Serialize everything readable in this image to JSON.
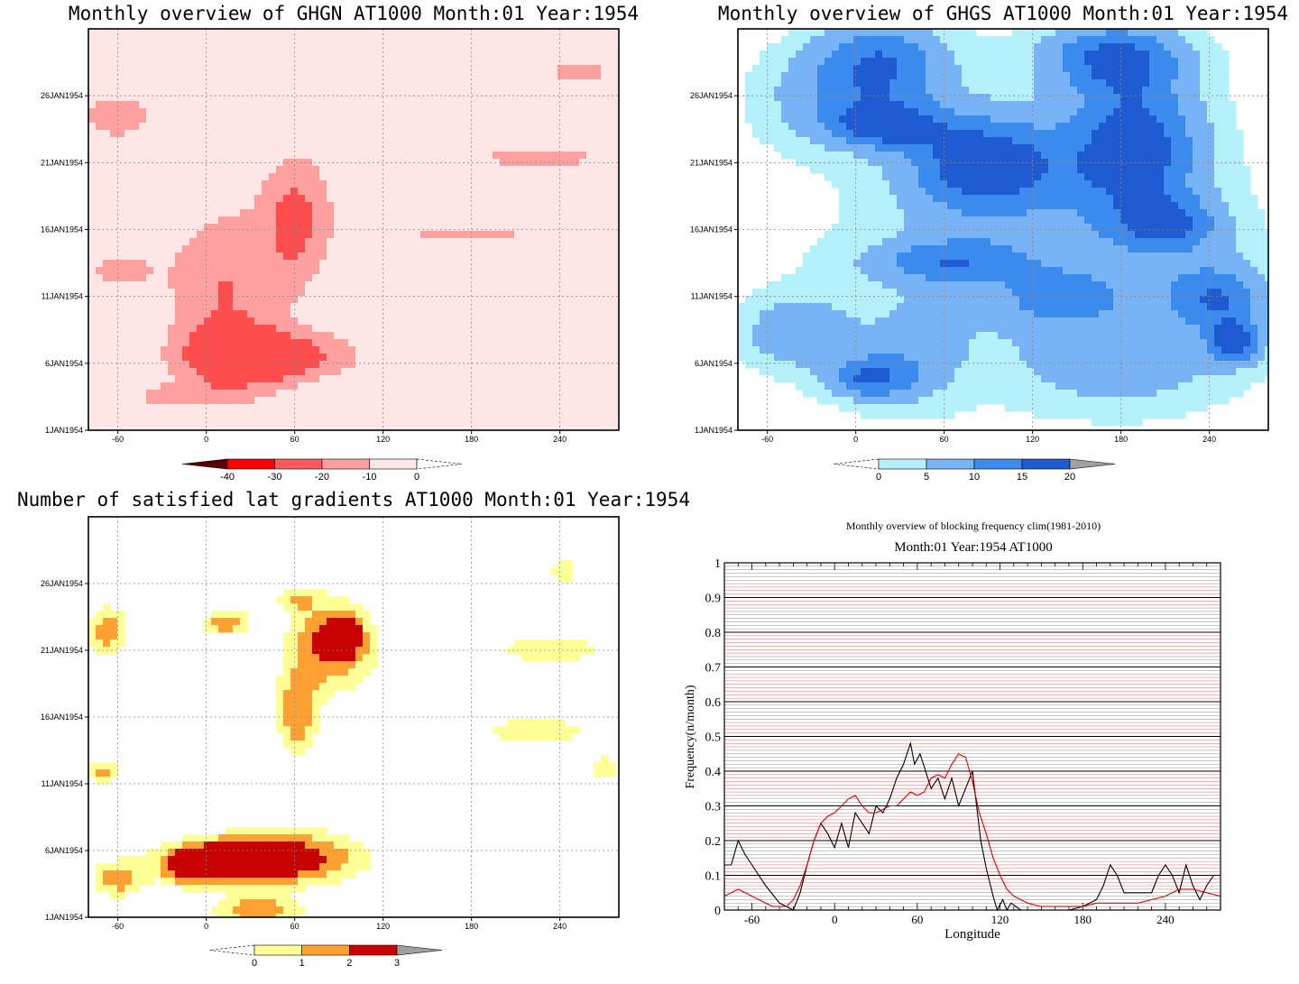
{
  "panels": [
    {
      "title": "Monthly overview of GHGN AT1000 Month:01 Year:1954",
      "colorbar": {
        "labels": [
          "-40",
          "-30",
          "-20",
          "-10",
          "0"
        ],
        "colors": [
          "#5a0000",
          "#ff0000",
          "#ff5a5a",
          "#ffa0a0",
          "#ffe8e8"
        ],
        "overflow": "left"
      },
      "palette": [
        "#ffffff",
        "#ffe6e6",
        "#ffa0a0",
        "#ff4d4d"
      ]
    },
    {
      "title": "Monthly overview of GHGS AT1000 Month:01 Year:1954",
      "colorbar": {
        "labels": [
          "0",
          "5",
          "10",
          "15",
          "20"
        ],
        "colors": [
          "#b4f0fa",
          "#78b4f5",
          "#3c8cf0",
          "#1e5ad2",
          "#a0a0a0"
        ],
        "overflow": "right"
      },
      "palette": [
        "#ffffff",
        "#b4f0fa",
        "#78b4f5",
        "#3c8cf0",
        "#1e5ad2"
      ]
    },
    {
      "title": "Number of satisfied lat gradients AT1000 Month:01 Year:1954",
      "colorbar": {
        "labels": [
          "0",
          "1",
          "2",
          "3"
        ],
        "colors": [
          "#ffff96",
          "#ffa032",
          "#c80000",
          "#a0a0a0"
        ],
        "overflow": "right"
      },
      "palette": [
        "#ffffff",
        "#ffff96",
        "#ffa032",
        "#c80000"
      ]
    }
  ],
  "map_axes": {
    "x_ticks": [
      "-60",
      "0",
      "60",
      "120",
      "180",
      "240"
    ],
    "y_ticks": [
      "1JAN1954",
      "6JAN1954",
      "11JAN1954",
      "16JAN1954",
      "21JAN1954",
      "26JAN1954"
    ]
  },
  "line_chart": {
    "title": "Monthly overview of blocking frequency clim(1981-2010)",
    "subtitle": "Month:01 Year:1954  AT1000",
    "xlabel": "Longitude",
    "ylabel": "Frequency(n/month)",
    "y_ticks": [
      "0",
      "0.1",
      "0.2",
      "0.3",
      "0.4",
      "0.5",
      "0.6",
      "0.7",
      "0.8",
      "0.9",
      "1"
    ],
    "x_ticks": [
      "-60",
      "0",
      "60",
      "120",
      "180",
      "240"
    ],
    "grid_color": "#cc0000"
  },
  "chart_data": [
    {
      "type": "heatmap",
      "title": "Monthly overview of GHGN AT1000 Month:01 Year:1954",
      "xlim": [
        -80,
        280
      ],
      "ylim": [
        "1JAN1954",
        "31JAN1954"
      ],
      "levels": [
        -40,
        -30,
        -20,
        -10,
        0
      ]
    },
    {
      "type": "heatmap",
      "title": "Monthly overview of GHGS AT1000 Month:01 Year:1954",
      "xlim": [
        -80,
        280
      ],
      "ylim": [
        "1JAN1954",
        "31JAN1954"
      ],
      "levels": [
        0,
        5,
        10,
        15,
        20
      ]
    },
    {
      "type": "heatmap",
      "title": "Number of satisfied lat gradients AT1000 Month:01 Year:1954",
      "xlim": [
        -80,
        280
      ],
      "ylim": [
        "1JAN1954",
        "31JAN1954"
      ],
      "levels": [
        0,
        1,
        2,
        3
      ]
    },
    {
      "type": "line",
      "title": "Monthly overview of blocking frequency clim(1981-2010)",
      "xlabel": "Longitude",
      "ylabel": "Frequency(n/month)",
      "xlim": [
        -80,
        280
      ],
      "ylim": [
        0,
        1
      ],
      "series": [
        {
          "color": "#000000",
          "x": [
            -80,
            -75,
            -70,
            -65,
            -60,
            -50,
            -40,
            -30,
            -25,
            -20,
            -15,
            -10,
            -5,
            0,
            5,
            10,
            15,
            20,
            25,
            30,
            35,
            40,
            45,
            50,
            55,
            58,
            62,
            66,
            70,
            75,
            80,
            85,
            90,
            95,
            100,
            103,
            106,
            110,
            115,
            118,
            122,
            125,
            128,
            135,
            150,
            170,
            180,
            190,
            195,
            200,
            205,
            210,
            220,
            230,
            235,
            240,
            245,
            250,
            255,
            260,
            265,
            270,
            275,
            280
          ],
          "values": [
            0.13,
            0.13,
            0.2,
            0.16,
            0.13,
            0.07,
            0.02,
            0.0,
            0.05,
            0.13,
            0.2,
            0.25,
            0.22,
            0.18,
            0.25,
            0.18,
            0.28,
            0.25,
            0.22,
            0.3,
            0.28,
            0.32,
            0.38,
            0.42,
            0.48,
            0.42,
            0.45,
            0.4,
            0.35,
            0.38,
            0.32,
            0.38,
            0.3,
            0.35,
            0.4,
            0.3,
            0.2,
            0.12,
            0.04,
            0.0,
            0.03,
            0.0,
            0.02,
            0.0,
            0.0,
            0.0,
            0.01,
            0.03,
            0.07,
            0.13,
            0.1,
            0.05,
            0.05,
            0.05,
            0.1,
            0.13,
            0.1,
            0.05,
            0.13,
            0.07,
            0.03,
            0.07,
            0.1,
            0.1
          ]
        },
        {
          "color": "#e00000",
          "x": [
            -80,
            -75,
            -70,
            -65,
            -60,
            -55,
            -50,
            -45,
            -40,
            -35,
            -30,
            -25,
            -20,
            -15,
            -10,
            -5,
            0,
            5,
            10,
            15,
            20,
            25,
            30,
            35,
            40,
            45,
            50,
            55,
            60,
            65,
            70,
            75,
            80,
            85,
            90,
            95,
            100,
            105,
            110,
            115,
            120,
            125,
            130,
            140,
            150,
            160,
            170,
            180,
            190,
            200,
            210,
            220,
            230,
            240,
            250,
            260,
            270,
            280
          ],
          "values": [
            0.04,
            0.05,
            0.06,
            0.05,
            0.04,
            0.03,
            0.02,
            0.01,
            0.01,
            0.01,
            0.03,
            0.07,
            0.13,
            0.2,
            0.25,
            0.27,
            0.28,
            0.3,
            0.32,
            0.33,
            0.3,
            0.28,
            0.28,
            0.29,
            0.3,
            0.3,
            0.32,
            0.34,
            0.33,
            0.34,
            0.38,
            0.39,
            0.38,
            0.42,
            0.45,
            0.44,
            0.37,
            0.28,
            0.22,
            0.15,
            0.1,
            0.06,
            0.04,
            0.02,
            0.01,
            0.01,
            0.01,
            0.01,
            0.02,
            0.02,
            0.02,
            0.02,
            0.03,
            0.04,
            0.06,
            0.06,
            0.05,
            0.04
          ]
        }
      ]
    }
  ]
}
